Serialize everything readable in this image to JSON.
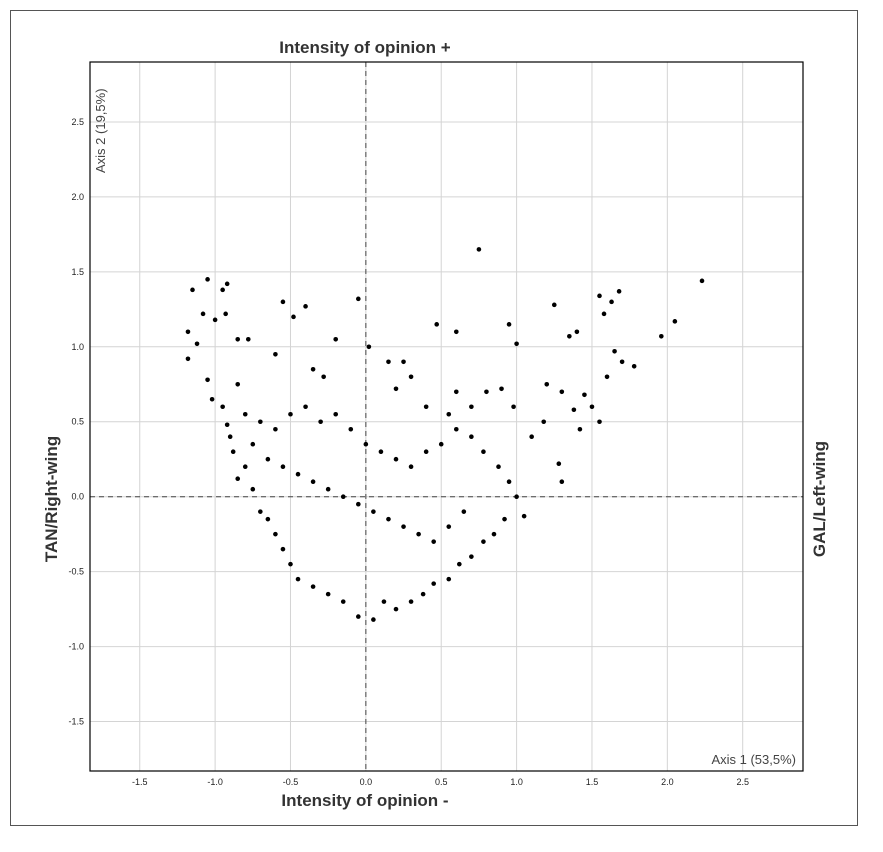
{
  "labels": {
    "top": "Intensity of opinion +",
    "bottom": "Intensity of opinion -",
    "left": "TAN/Right-wing",
    "right": "GAL/Left-wing"
  },
  "chart_data": {
    "type": "scatter",
    "title": "",
    "xlabel": "Axis 1 (53,5%)",
    "ylabel": "Axis 2 (19,5%)",
    "xlim": [
      -1.83,
      2.9
    ],
    "ylim": [
      -1.83,
      2.9
    ],
    "xticks": [
      -1.5,
      -1.0,
      -0.5,
      0.0,
      0.5,
      1.0,
      1.5,
      2.0,
      2.5
    ],
    "yticks": [
      -1.5,
      -1.0,
      -0.5,
      0.0,
      0.5,
      1.0,
      1.5,
      2.0,
      2.5
    ],
    "grid": true,
    "reference_lines": {
      "x": 0,
      "y": 0,
      "style": "dashed"
    },
    "point_color": "#000000",
    "series": [
      {
        "values": [
          [
            -1.15,
            1.38
          ],
          [
            -1.05,
            1.45
          ],
          [
            -0.95,
            1.38
          ],
          [
            -0.92,
            1.42
          ],
          [
            -1.08,
            1.22
          ],
          [
            -0.93,
            1.22
          ],
          [
            -1.18,
            1.1
          ],
          [
            -1.12,
            1.02
          ],
          [
            -1.18,
            0.92
          ],
          [
            -1.05,
            0.78
          ],
          [
            -0.85,
            1.05
          ],
          [
            -0.78,
            1.05
          ],
          [
            -1.0,
            1.18
          ],
          [
            -0.55,
            1.3
          ],
          [
            -0.4,
            1.27
          ],
          [
            -0.48,
            1.2
          ],
          [
            -0.05,
            1.32
          ],
          [
            0.02,
            1.0
          ],
          [
            0.47,
            1.15
          ],
          [
            0.6,
            1.1
          ],
          [
            0.75,
            1.65
          ],
          [
            0.95,
            1.15
          ],
          [
            1.0,
            1.02
          ],
          [
            1.25,
            1.28
          ],
          [
            1.55,
            1.34
          ],
          [
            1.63,
            1.3
          ],
          [
            1.68,
            1.37
          ],
          [
            1.58,
            1.22
          ],
          [
            2.23,
            1.44
          ],
          [
            2.05,
            1.17
          ],
          [
            1.96,
            1.07
          ],
          [
            1.4,
            1.1
          ],
          [
            1.35,
            1.07
          ],
          [
            1.65,
            0.97
          ],
          [
            1.7,
            0.9
          ],
          [
            1.78,
            0.87
          ],
          [
            1.6,
            0.8
          ],
          [
            1.45,
            0.68
          ],
          [
            1.5,
            0.6
          ],
          [
            1.55,
            0.5
          ],
          [
            1.42,
            0.45
          ],
          [
            1.38,
            0.58
          ],
          [
            1.3,
            0.7
          ],
          [
            1.2,
            0.75
          ],
          [
            1.18,
            0.5
          ],
          [
            1.1,
            0.4
          ],
          [
            1.28,
            0.22
          ],
          [
            1.3,
            0.1
          ],
          [
            1.05,
            -0.13
          ],
          [
            0.98,
            0.6
          ],
          [
            0.9,
            0.72
          ],
          [
            0.8,
            0.7
          ],
          [
            0.6,
            0.7
          ],
          [
            0.7,
            0.6
          ],
          [
            0.55,
            0.55
          ],
          [
            0.4,
            0.6
          ],
          [
            0.3,
            0.8
          ],
          [
            0.2,
            0.72
          ],
          [
            0.25,
            0.9
          ],
          [
            0.15,
            0.9
          ],
          [
            -0.2,
            1.05
          ],
          [
            -0.28,
            0.8
          ],
          [
            -0.35,
            0.85
          ],
          [
            -0.6,
            0.95
          ],
          [
            -0.85,
            0.75
          ],
          [
            -0.95,
            0.6
          ],
          [
            -1.02,
            0.65
          ],
          [
            -0.92,
            0.48
          ],
          [
            -0.88,
            0.3
          ],
          [
            -0.8,
            0.2
          ],
          [
            -0.85,
            0.12
          ],
          [
            -0.75,
            0.05
          ],
          [
            -0.7,
            -0.1
          ],
          [
            -0.65,
            -0.15
          ],
          [
            -0.6,
            -0.25
          ],
          [
            -0.55,
            -0.35
          ],
          [
            -0.5,
            -0.45
          ],
          [
            -0.45,
            -0.55
          ],
          [
            -0.35,
            -0.6
          ],
          [
            -0.25,
            -0.65
          ],
          [
            -0.15,
            -0.7
          ],
          [
            -0.05,
            -0.8
          ],
          [
            0.05,
            -0.82
          ],
          [
            0.12,
            -0.7
          ],
          [
            0.2,
            -0.75
          ],
          [
            0.3,
            -0.7
          ],
          [
            0.38,
            -0.65
          ],
          [
            0.45,
            -0.58
          ],
          [
            0.55,
            -0.55
          ],
          [
            0.62,
            -0.45
          ],
          [
            0.7,
            -0.4
          ],
          [
            0.78,
            -0.3
          ],
          [
            0.85,
            -0.25
          ],
          [
            0.92,
            -0.15
          ],
          [
            1.0,
            0.0
          ],
          [
            0.95,
            0.1
          ],
          [
            0.88,
            0.2
          ],
          [
            0.78,
            0.3
          ],
          [
            0.7,
            0.4
          ],
          [
            0.6,
            0.45
          ],
          [
            0.5,
            0.35
          ],
          [
            0.4,
            0.3
          ],
          [
            0.3,
            0.2
          ],
          [
            0.2,
            0.25
          ],
          [
            0.1,
            0.3
          ],
          [
            0.0,
            0.35
          ],
          [
            -0.1,
            0.45
          ],
          [
            -0.2,
            0.55
          ],
          [
            -0.3,
            0.5
          ],
          [
            -0.4,
            0.6
          ],
          [
            -0.5,
            0.55
          ],
          [
            -0.6,
            0.45
          ],
          [
            -0.7,
            0.5
          ],
          [
            -0.8,
            0.55
          ],
          [
            -0.9,
            0.4
          ],
          [
            -0.75,
            0.35
          ],
          [
            -0.65,
            0.25
          ],
          [
            -0.55,
            0.2
          ],
          [
            -0.45,
            0.15
          ],
          [
            -0.35,
            0.1
          ],
          [
            -0.25,
            0.05
          ],
          [
            -0.15,
            0.0
          ],
          [
            -0.05,
            -0.05
          ],
          [
            0.05,
            -0.1
          ],
          [
            0.15,
            -0.15
          ],
          [
            0.25,
            -0.2
          ],
          [
            0.35,
            -0.25
          ],
          [
            0.45,
            -0.3
          ],
          [
            0.55,
            -0.2
          ],
          [
            0.65,
            -0.1
          ]
        ]
      }
    ]
  }
}
